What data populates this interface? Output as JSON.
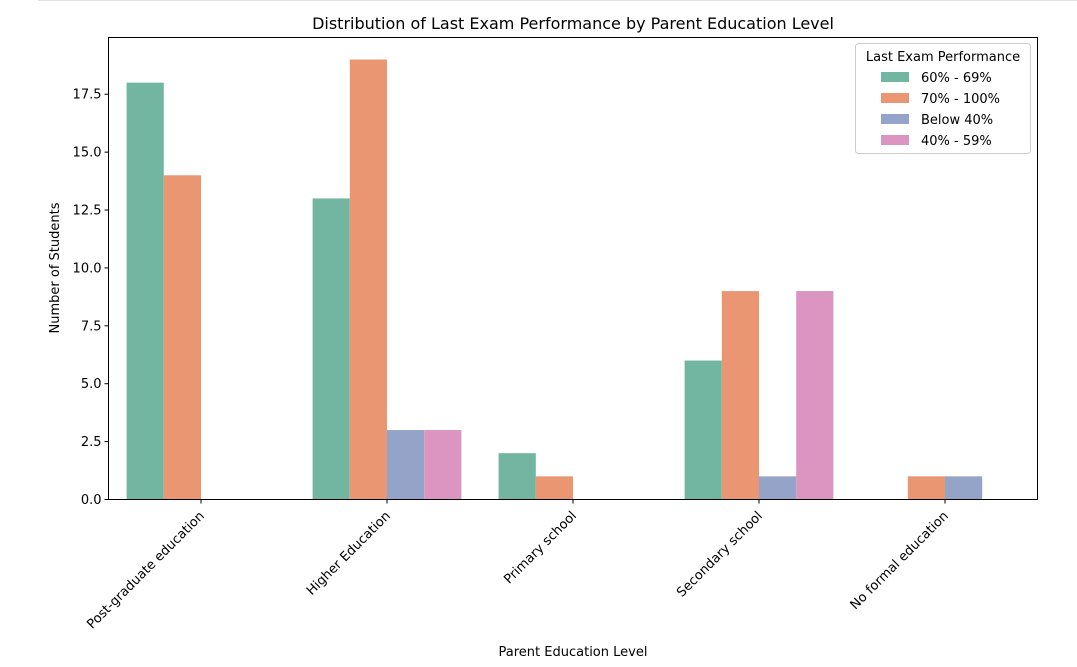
{
  "chart_data": {
    "type": "bar",
    "title": "Distribution of Last Exam Performance by Parent Education Level",
    "xlabel": "Parent Education Level",
    "ylabel": "Number of Students",
    "categories": [
      "Post-graduate education",
      "Higher Education",
      "Primary school",
      "Secondary school",
      "No formal education"
    ],
    "series": [
      {
        "name": "60% - 69%",
        "color": "#72b5a0",
        "values": [
          18,
          13,
          2,
          6,
          0
        ]
      },
      {
        "name": "70% - 100%",
        "color": "#ea9673",
        "values": [
          14,
          19,
          1,
          9,
          1
        ]
      },
      {
        "name": "Below 40%",
        "color": "#93a4c8",
        "values": [
          0,
          3,
          0,
          1,
          1
        ]
      },
      {
        "name": "40% - 59%",
        "color": "#dc94c0",
        "values": [
          0,
          3,
          0,
          9,
          0
        ]
      }
    ],
    "ylim": [
      0,
      19.95
    ],
    "yticks": [
      "0.0",
      "2.5",
      "5.0",
      "7.5",
      "10.0",
      "12.5",
      "15.0",
      "17.5"
    ],
    "legend": {
      "title": "Last Exam Performance",
      "placement": "top-right"
    },
    "grid": false
  }
}
